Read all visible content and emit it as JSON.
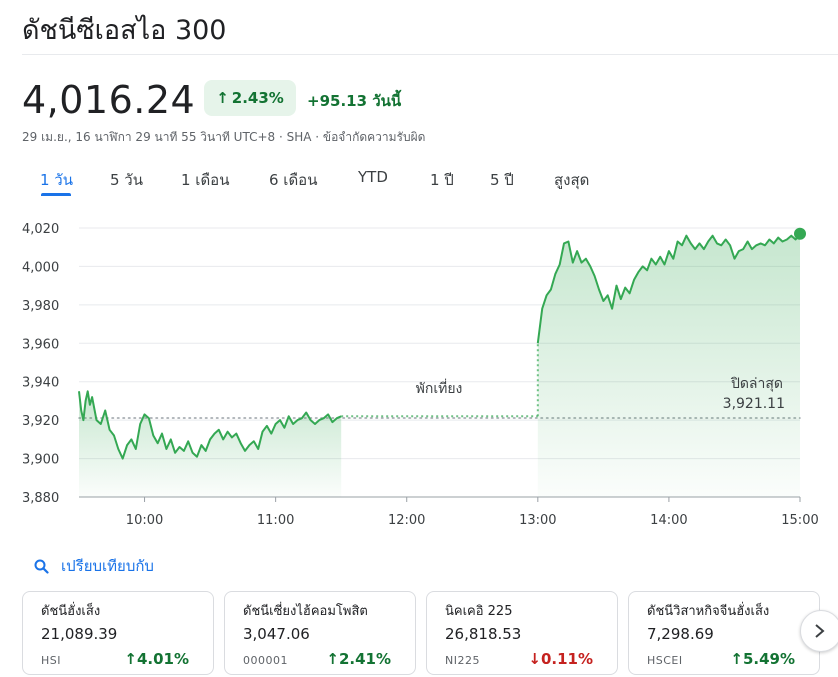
{
  "header": {
    "title": "ดัชนีซีเอสไอ 300",
    "price": "4,016.24",
    "change_pct": "2.43%",
    "change_abs": "+95.13 วันนี้",
    "meta": "29 เม.ย., 16 นาฬิกา 29 นาที 55 วินาที UTC+8 · SHA · ข้อจำกัดความรับผิด"
  },
  "tabs": [
    {
      "label": "1 วัน",
      "active": true
    },
    {
      "label": "5 วัน"
    },
    {
      "label": "1 เดือน"
    },
    {
      "label": "6 เดือน"
    },
    {
      "label": "YTD"
    },
    {
      "label": "1 ปี"
    },
    {
      "label": "5 ปี"
    },
    {
      "label": "สูงสุด"
    }
  ],
  "chart_data": {
    "type": "area",
    "ylim": [
      3880,
      4020
    ],
    "y_ticks": [
      "3,880",
      "3,900",
      "3,920",
      "3,940",
      "3,960",
      "3,980",
      "4,000",
      "4,020"
    ],
    "x_ticks": [
      "10:00",
      "11:00",
      "12:00",
      "13:00",
      "14:00",
      "15:00"
    ],
    "x_range_minutes": [
      570,
      900
    ],
    "previous_close": 3921.11,
    "previous_close_label": "ปิดล่าสุด",
    "previous_close_value": "3,921.11",
    "lunch_break_label": "พักเที่ยง",
    "series": [
      {
        "segment": "morning",
        "x": [
          570,
          571,
          572,
          573,
          574,
          575,
          576,
          577,
          578,
          580,
          582,
          584,
          586,
          588,
          590,
          592,
          594,
          596,
          598,
          600,
          602,
          604,
          606,
          608,
          610,
          612,
          614,
          616,
          618,
          620,
          622,
          624,
          626,
          628,
          630,
          632,
          634,
          636,
          638,
          640,
          642,
          644,
          646,
          648,
          650,
          652,
          654,
          656,
          658,
          660,
          662,
          664,
          666,
          668,
          670,
          672,
          674,
          676,
          678,
          680,
          682,
          684,
          686,
          688,
          690
        ],
        "y": [
          3935,
          3925,
          3920,
          3930,
          3935,
          3928,
          3932,
          3926,
          3920,
          3918,
          3925,
          3915,
          3912,
          3905,
          3900,
          3907,
          3910,
          3905,
          3918,
          3923,
          3921,
          3912,
          3908,
          3913,
          3905,
          3910,
          3903,
          3906,
          3904,
          3909,
          3903,
          3901,
          3907,
          3904,
          3910,
          3913,
          3915,
          3910,
          3914,
          3911,
          3913,
          3908,
          3904,
          3907,
          3909,
          3905,
          3914,
          3917,
          3913,
          3918,
          3920,
          3916,
          3922,
          3918,
          3920,
          3921,
          3924,
          3920,
          3918,
          3920,
          3921,
          3923,
          3919,
          3921,
          3922
        ]
      },
      {
        "segment": "afternoon",
        "x": [
          780,
          782,
          784,
          786,
          788,
          790,
          792,
          794,
          796,
          798,
          800,
          802,
          804,
          806,
          808,
          810,
          812,
          814,
          816,
          818,
          820,
          822,
          824,
          826,
          828,
          830,
          832,
          834,
          836,
          838,
          840,
          842,
          844,
          846,
          848,
          850,
          852,
          854,
          856,
          858,
          860,
          862,
          864,
          866,
          868,
          870,
          872,
          874,
          876,
          878,
          880,
          882,
          884,
          886,
          888,
          890,
          892,
          894,
          896,
          898,
          900
        ],
        "y": [
          3960,
          3978,
          3985,
          3988,
          3996,
          4001,
          4012,
          4013,
          4002,
          4008,
          4002,
          4004,
          4000,
          3995,
          3988,
          3982,
          3985,
          3978,
          3990,
          3983,
          3989,
          3986,
          3993,
          3997,
          4000,
          3998,
          4004,
          4001,
          4005,
          4001,
          4008,
          4004,
          4013,
          4011,
          4016,
          4012,
          4009,
          4012,
          4009,
          4013,
          4016,
          4012,
          4011,
          4014,
          4011,
          4004,
          4008,
          4009,
          4013,
          4009,
          4011,
          4012,
          4011,
          4014,
          4012,
          4015,
          4013,
          4014,
          4016,
          4014,
          4017
        ]
      }
    ]
  },
  "compare": {
    "label": "เปรียบเทียบกับ"
  },
  "cards": [
    {
      "name": "ดัชนีฮั่งเส็ง",
      "value": "21,089.39",
      "symbol": "HSI",
      "change": "4.01%",
      "direction": "up"
    },
    {
      "name": "ดัชนีเซี่ยงไฮ้คอมโพสิต",
      "value": "3,047.06",
      "symbol": "000001",
      "change": "2.41%",
      "direction": "up"
    },
    {
      "name": "นิคเคอิ 225",
      "value": "26,818.53",
      "symbol": "NI225",
      "change": "0.11%",
      "direction": "down"
    },
    {
      "name": "ดัชนีวิสาหกิจจีนฮั่งเส็ง",
      "value": "7,298.69",
      "symbol": "HSCEI",
      "change": "5.49%",
      "direction": "up"
    }
  ],
  "colors": {
    "up": "#137333",
    "down": "#c5221f",
    "line": "#34a853",
    "accent": "#1a73e8"
  },
  "icons": {
    "compare": "search-icon",
    "next": "chevron-right-icon"
  }
}
